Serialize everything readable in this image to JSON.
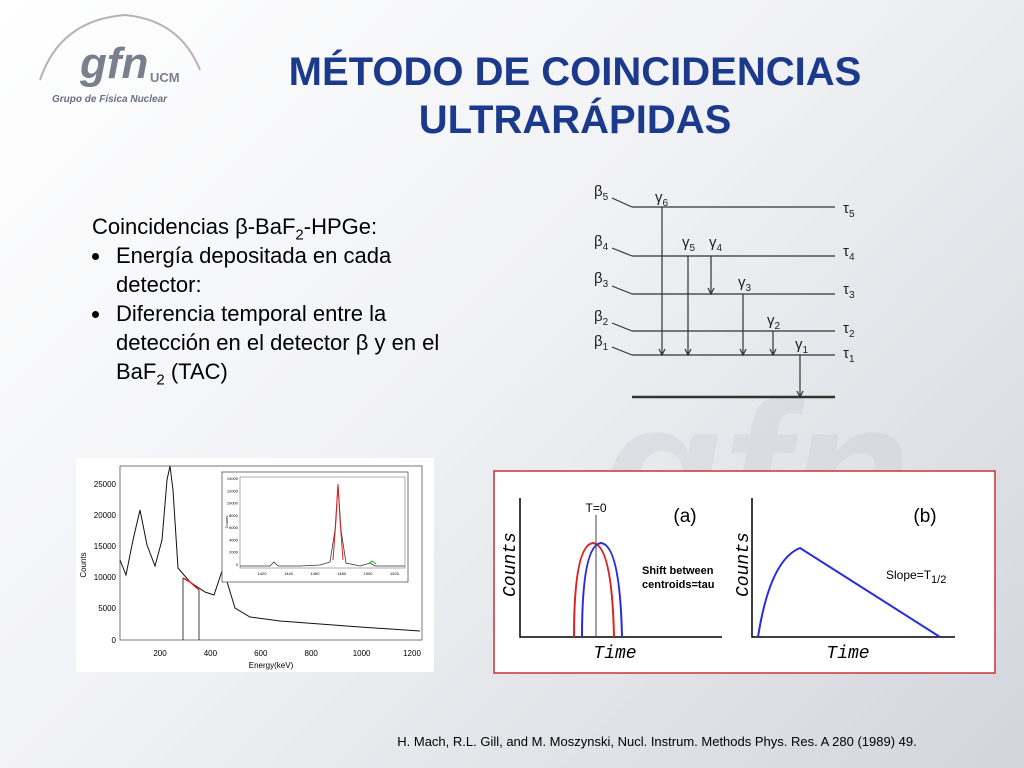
{
  "logo": {
    "acronym": "gfn",
    "institution": "UCM",
    "group": "Grupo de Física Nuclear"
  },
  "title": {
    "line1": "MÉTODO DE COINCIDENCIAS",
    "line2": "ULTRARÁPIDAS"
  },
  "body": {
    "heading": [
      "Coincidencias β-BaF",
      "2",
      "-HPGe:"
    ],
    "bullets": [
      [
        "Energía depositada en cada detector:"
      ],
      [
        "Diferencia temporal entre la detección en el detector β y en el BaF",
        "2",
        " (TAC)"
      ]
    ]
  },
  "level_scheme": {
    "labels": [
      {
        "symbol": "β",
        "sub": "5"
      },
      {
        "symbol": "β",
        "sub": "4"
      },
      {
        "symbol": "β",
        "sub": "3"
      },
      {
        "symbol": "β",
        "sub": "2"
      },
      {
        "symbol": "β",
        "sub": "1"
      },
      {
        "symbol": "τ",
        "sub": "5"
      },
      {
        "symbol": "τ",
        "sub": "4"
      },
      {
        "symbol": "τ",
        "sub": "3"
      },
      {
        "symbol": "τ",
        "sub": "2"
      },
      {
        "symbol": "τ",
        "sub": "1"
      },
      {
        "symbol": "γ",
        "sub": "6"
      },
      {
        "symbol": "γ",
        "sub": "5"
      },
      {
        "symbol": "γ",
        "sub": "4"
      },
      {
        "symbol": "γ",
        "sub": "3"
      },
      {
        "symbol": "γ",
        "sub": "2"
      },
      {
        "symbol": "γ",
        "sub": "1"
      }
    ]
  },
  "spectrum": {
    "y_label": "Counts",
    "x_label": "Energy(keV)",
    "y_ticks": [
      "25000",
      "20000",
      "15000",
      "10000",
      "5000",
      "0"
    ],
    "x_ticks": [
      "200",
      "400",
      "600",
      "800",
      "1000",
      "1200"
    ],
    "inset": {
      "y_label": "Counts",
      "y_ticks": [
        "14000",
        "12000",
        "10000",
        "8000",
        "6000",
        "4000",
        "2000",
        "0"
      ],
      "x_ticks": [
        "1420",
        "1440",
        "1460",
        "1480",
        "1500",
        "1520"
      ]
    }
  },
  "timing_figure": {
    "panel_a": {
      "marker": "(a)",
      "t0": "T=0",
      "y_label": "Counts",
      "x_label": "Time",
      "note": [
        "Shift between",
        "centroids=tau"
      ]
    },
    "panel_b": {
      "marker": "(b)",
      "y_label": "Counts",
      "x_label": "Time",
      "note": [
        "Slope=T",
        "1/2"
      ]
    }
  },
  "reference": "H. Mach, R.L. Gill, and M. Moszynski, Nucl. Instrum. Methods Phys. Res. A 280 (1989) 49."
}
